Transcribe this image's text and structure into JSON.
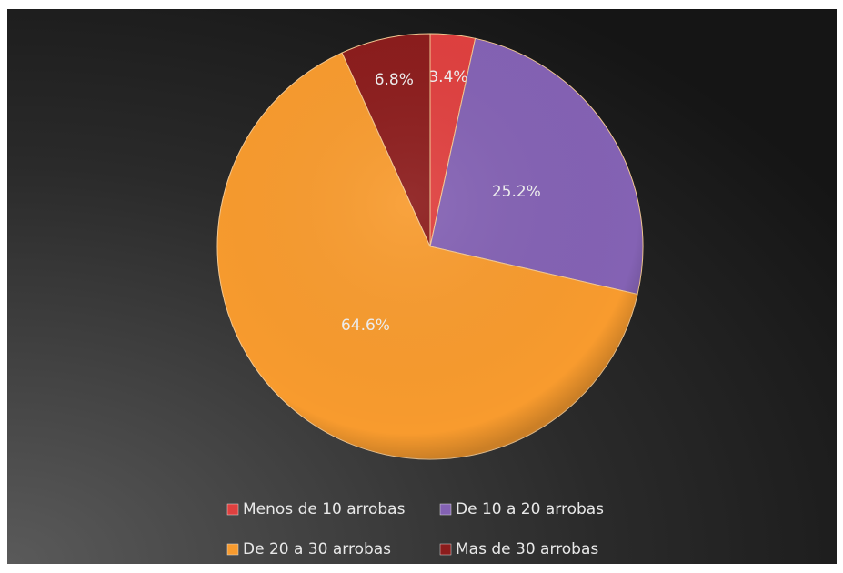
{
  "chart_data": {
    "type": "pie",
    "categories": [
      "Menos de 10 arrobas",
      "De 10 a 20 arrobas",
      "De 20 a 30 arrobas",
      "Mas de 30 arrobas"
    ],
    "values": [
      3.4,
      25.2,
      64.6,
      6.8
    ],
    "value_labels": [
      "3.4%",
      "25.2%",
      "64.6%",
      "6.8%"
    ],
    "colors": [
      "#e0403f",
      "#8462b4",
      "#f89b2e",
      "#8c1c1c"
    ],
    "legend": "bottom"
  }
}
